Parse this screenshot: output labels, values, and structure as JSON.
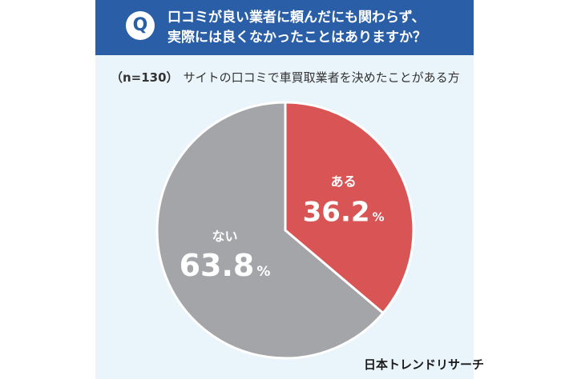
{
  "question": {
    "badge": "Q",
    "line1": "口コミが良い業者に頼んだにも関わらず、",
    "line2": "実際には良くなかったことはありますか？"
  },
  "sample": {
    "n_label": "（n=130）",
    "caption": "サイトの口コミで車買取業者を決めたことがある方"
  },
  "source": "日本トレンドリサーチ",
  "colors": {
    "header": "#2a5fa8",
    "background": "#eaf4fb",
    "aru": "#d95555",
    "nai": "#a4a5a8"
  },
  "chart_data": {
    "type": "pie",
    "n": 130,
    "slices": [
      {
        "label": "ある",
        "value": 36.2,
        "display": "36.2",
        "unit": "%",
        "color": "#d95555"
      },
      {
        "label": "ない",
        "value": 63.8,
        "display": "63.8",
        "unit": "%",
        "color": "#a4a5a8"
      }
    ]
  }
}
